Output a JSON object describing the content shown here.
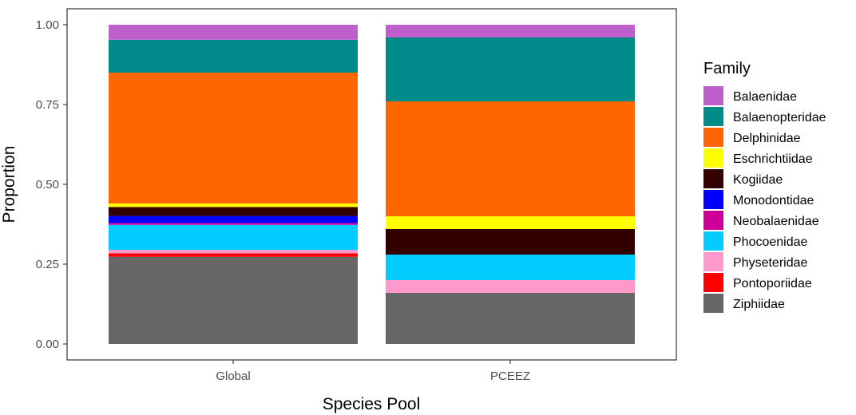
{
  "chart_data": {
    "type": "bar",
    "stacked": true,
    "xlabel": "Species Pool",
    "ylabel": "Proportion",
    "ylim": [
      0,
      1
    ],
    "yticks": [
      "0.00",
      "0.25",
      "0.50",
      "0.75",
      "1.00"
    ],
    "categories": [
      "Global",
      "PCEEZ"
    ],
    "legend": {
      "title": "Family",
      "placement": "right"
    },
    "grid": false,
    "series": [
      {
        "name": "Ziphiidae",
        "color": "#666666",
        "values": [
          0.273,
          0.16
        ]
      },
      {
        "name": "Pontoporiidae",
        "color": "#FF0000",
        "values": [
          0.011,
          0.0
        ]
      },
      {
        "name": "Physeteridae",
        "color": "#FF99CC",
        "values": [
          0.011,
          0.04
        ]
      },
      {
        "name": "Phocoenidae",
        "color": "#00CCFF",
        "values": [
          0.078,
          0.08
        ]
      },
      {
        "name": "Neobalaenidae",
        "color": "#CC0099",
        "values": [
          0.006,
          0.0
        ]
      },
      {
        "name": "Monodontidae",
        "color": "#0000FF",
        "values": [
          0.022,
          0.0
        ]
      },
      {
        "name": "Kogiidae",
        "color": "#330000",
        "values": [
          0.028,
          0.08
        ]
      },
      {
        "name": "Eschrichtiidae",
        "color": "#FFFF00",
        "values": [
          0.011,
          0.04
        ]
      },
      {
        "name": "Delphinidae",
        "color": "#FF6600",
        "values": [
          0.41,
          0.36
        ]
      },
      {
        "name": "Balaenopteridae",
        "color": "#008B8B",
        "values": [
          0.103,
          0.2
        ]
      },
      {
        "name": "Balaenidae",
        "color": "#BF5FCC",
        "values": [
          0.047,
          0.04
        ]
      }
    ],
    "legend_order": [
      "Balaenidae",
      "Balaenopteridae",
      "Delphinidae",
      "Eschrichtiidae",
      "Kogiidae",
      "Monodontidae",
      "Neobalaenidae",
      "Phocoenidae",
      "Physeteridae",
      "Pontoporiidae",
      "Ziphiidae"
    ]
  }
}
